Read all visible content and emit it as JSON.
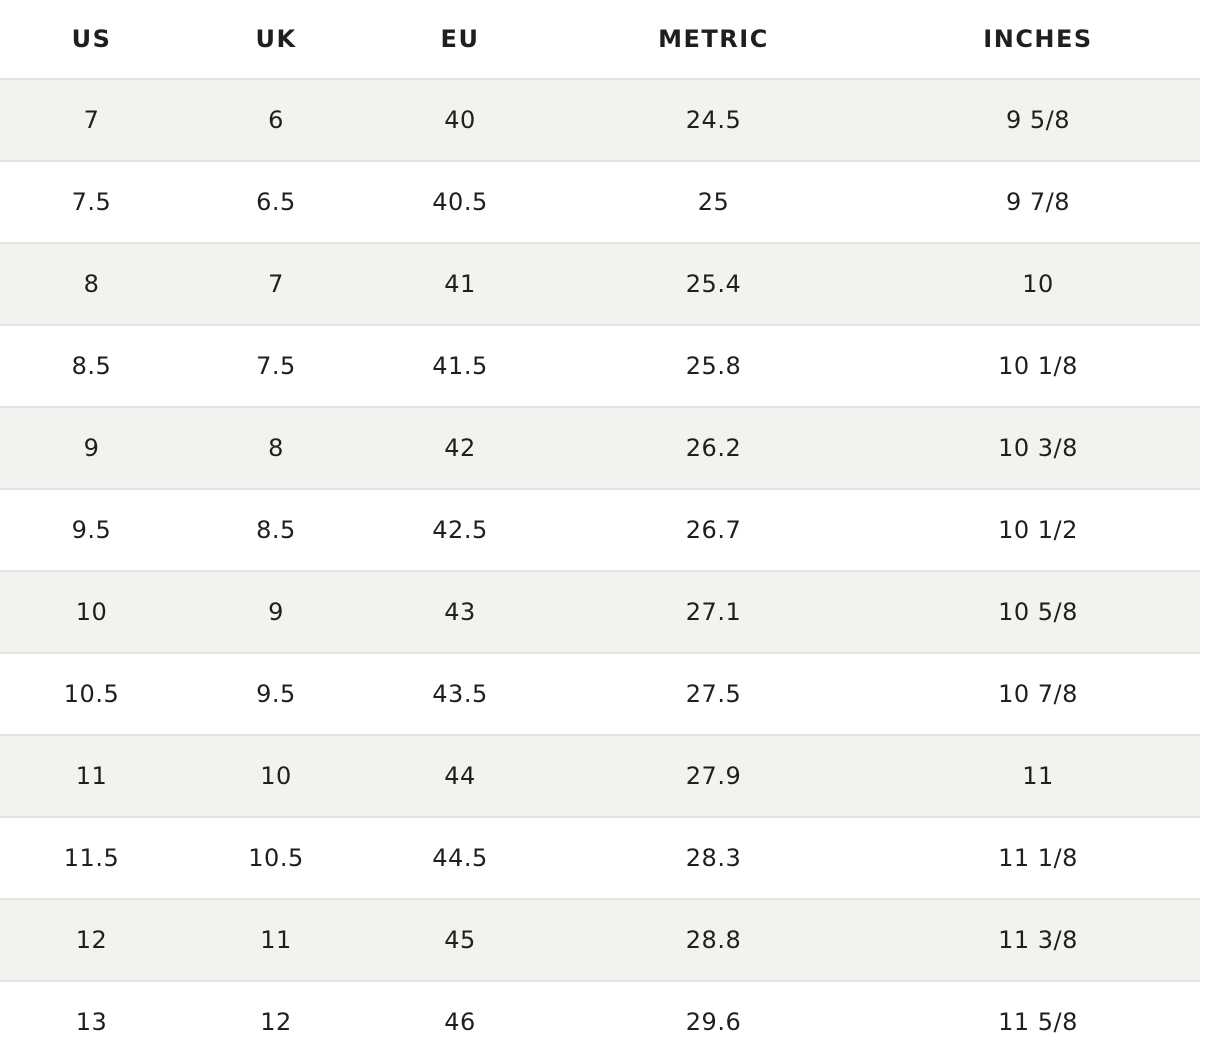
{
  "table": {
    "headers": [
      "US",
      "UK",
      "EU",
      "METRIC",
      "INCHES"
    ],
    "rows": [
      [
        "7",
        "6",
        "40",
        "24.5",
        "9 5/8"
      ],
      [
        "7.5",
        "6.5",
        "40.5",
        "25",
        "9 7/8"
      ],
      [
        "8",
        "7",
        "41",
        "25.4",
        "10"
      ],
      [
        "8.5",
        "7.5",
        "41.5",
        "25.8",
        "10 1/8"
      ],
      [
        "9",
        "8",
        "42",
        "26.2",
        "10 3/8"
      ],
      [
        "9.5",
        "8.5",
        "42.5",
        "26.7",
        "10 1/2"
      ],
      [
        "10",
        "9",
        "43",
        "27.1",
        "10 5/8"
      ],
      [
        "10.5",
        "9.5",
        "43.5",
        "27.5",
        "10 7/8"
      ],
      [
        "11",
        "10",
        "44",
        "27.9",
        "11"
      ],
      [
        "11.5",
        "10.5",
        "44.5",
        "28.3",
        "11 1/8"
      ],
      [
        "12",
        "11",
        "45",
        "28.8",
        "11 3/8"
      ],
      [
        "13",
        "12",
        "46",
        "29.6",
        "11 5/8"
      ]
    ]
  },
  "colors": {
    "striped_row": "#f3f2ee",
    "plain_row": "#ffffff",
    "divider": "#e4e4e4",
    "text": "#1f1f1f"
  }
}
